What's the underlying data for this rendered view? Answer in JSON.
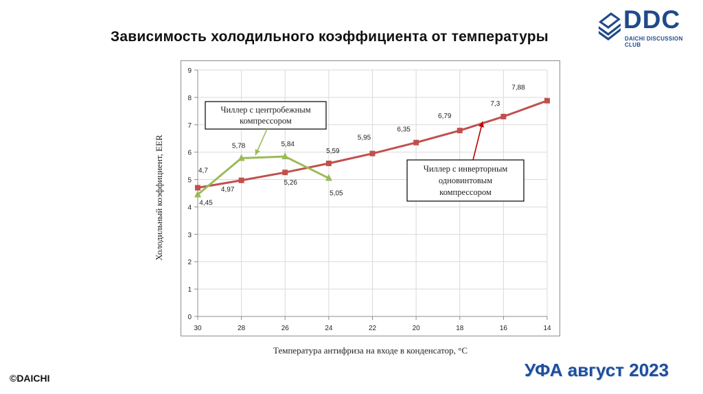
{
  "page": {
    "title": "Зависимость холодильного коэффициента от температуры",
    "logo": {
      "text": "DDC",
      "subtitle": "DAICHI DISCUSSION CLUB",
      "color": "#1f4a8a"
    },
    "footer_left": "©DAICHI",
    "footer_right": "УФА август 2023"
  },
  "chart_data": {
    "type": "line",
    "xlabel": "Температура антифриза на входе в конденсатор, °С",
    "ylabel": "Холодильный коэффициент, EER",
    "categories": [
      "30",
      "28",
      "26",
      "24",
      "22",
      "20",
      "18",
      "16",
      "14"
    ],
    "x_ticks": [
      "30",
      "28",
      "26",
      "24",
      "22",
      "20",
      "18",
      "16",
      "14"
    ],
    "y_ticks": [
      "0",
      "1",
      "2",
      "3",
      "4",
      "5",
      "6",
      "7",
      "8",
      "9"
    ],
    "ylim": [
      0,
      9
    ],
    "grid": true,
    "series": [
      {
        "name": "Чиллер с инверторным одновинтовым компрессором",
        "color": "#c0504d",
        "marker": "square",
        "x": [
          30,
          28,
          26,
          24,
          22,
          20,
          18,
          16,
          14
        ],
        "values": [
          4.7,
          4.97,
          5.26,
          5.59,
          5.95,
          6.35,
          6.79,
          7.3,
          7.88
        ],
        "labels": [
          "4,7",
          "4,97",
          "5,26",
          "5,59",
          "5,95",
          "6,35",
          "6,79",
          "7,3",
          "7,88"
        ]
      },
      {
        "name": "Чиллер с центробежным компрессором",
        "color": "#9bbb59",
        "marker": "triangle",
        "x": [
          30,
          28,
          26,
          24
        ],
        "values": [
          4.45,
          5.78,
          5.84,
          5.05
        ],
        "labels": [
          "4,45",
          "5,78",
          "5,84",
          "5,05"
        ]
      }
    ],
    "callouts": [
      {
        "text_lines": [
          "Чиллер с центробежным",
          "компрессором"
        ],
        "series": 1
      },
      {
        "text_lines": [
          "Чиллер с инверторным",
          "одновинтовым",
          "компрессором"
        ],
        "series": 0
      }
    ]
  }
}
